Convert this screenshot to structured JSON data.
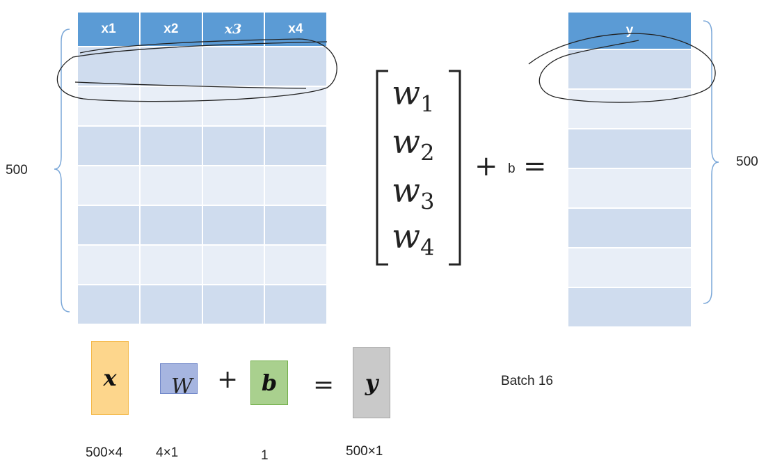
{
  "x_table": {
    "headers": [
      "x1",
      "x2",
      "x3",
      "x4"
    ],
    "row_count": 7,
    "rows_label": "500"
  },
  "y_table": {
    "header": "y",
    "row_count": 7,
    "rows_label": "500"
  },
  "weights": {
    "entries": [
      {
        "sym": "w",
        "sub": "1"
      },
      {
        "sym": "w",
        "sub": "2"
      },
      {
        "sym": "w",
        "sub": "3"
      },
      {
        "sym": "w",
        "sub": "4"
      }
    ],
    "plus": "+",
    "bias": "b",
    "equals": "="
  },
  "equation": {
    "x": {
      "symbol": "x",
      "dim": "500×4",
      "color": "#fdd68c"
    },
    "w": {
      "symbol": "W",
      "dim": "4×1",
      "color": "#a6b5e0"
    },
    "plus": "+",
    "b": {
      "symbol": "b",
      "dim": "1",
      "color": "#a9d08e"
    },
    "equals": "=",
    "y": {
      "symbol": "y",
      "dim": "500×1",
      "color": "#c9c9c9"
    }
  },
  "batch_label": "Batch 16"
}
